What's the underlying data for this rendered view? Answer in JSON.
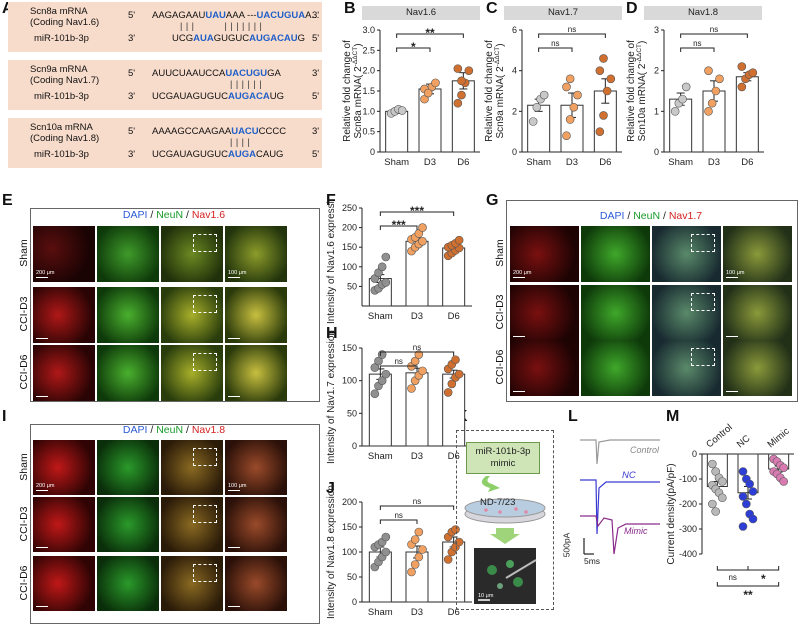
{
  "panel_labels": {
    "A": "A",
    "B": "B",
    "C": "C",
    "D": "D",
    "E": "E",
    "F": "F",
    "G": "G",
    "H": "H",
    "I": "I",
    "J": "J",
    "K": "K",
    "L": "L",
    "M": "M"
  },
  "panelA": {
    "rows": [
      {
        "mrna_line1": "Scn8a mRNA",
        "mrna_line2": "(Coding Nav1.6)",
        "prime5": "5'",
        "prime3": "3'",
        "top_plain": "AAGAGAAU",
        "top_hl1": "UAU",
        "top_mid": "AAA ---",
        "top_hl2": "UACUGUA",
        "top_end": "A...",
        "bars": "| | |          | | | | | | |",
        "mir": "miR-101b-3p",
        "mir_p3": "3'",
        "mir_p5": "5'",
        "bot_plain": "UCG",
        "bot_hl1": "AUA",
        "bot_mid": "GUGUC",
        "bot_hl2": "AUGACAU",
        "bot_end": "G"
      },
      {
        "mrna_line1": "Scn9a mRNA",
        "mrna_line2": "(Coding Nav1.7)",
        "prime5": "5'",
        "prime3": "3'",
        "top_plain": "AUUCUAAUCCA",
        "top_hl1": "",
        "top_mid": "",
        "top_hl2": "UACUGU",
        "top_end": "GA",
        "bars": "| | | | | |",
        "mir": "miR-101b-3p",
        "mir_p3": "3'",
        "mir_p5": "5'",
        "bot_plain": "UCGAUAGUGUC",
        "bot_hl1": "",
        "bot_mid": "",
        "bot_hl2": "AUGACA",
        "bot_end": "UG"
      },
      {
        "mrna_line1": "Scn10a mRNA",
        "mrna_line2": "(Coding Nav1.8)",
        "prime5": "5'",
        "prime3": "3'",
        "top_plain": "AAAAGCCAAGAA",
        "top_hl1": "",
        "top_mid": "",
        "top_hl2": "UACU",
        "top_end": "CCCC",
        "bars": "| | | |",
        "mir": "miR-101b-3p",
        "mir_p3": "3'",
        "mir_p5": "5'",
        "bot_plain": "UCGAUAGUGUC",
        "bot_hl1": "",
        "bot_mid": "",
        "bot_hl2": "AUGA",
        "bot_end": "CAUG"
      }
    ]
  },
  "stain_titles": {
    "E": {
      "dapi": "DAPI",
      "sep1": " / ",
      "neun": "NeuN",
      "sep2": " / ",
      "nav": "Nav1.6"
    },
    "G": {
      "dapi": "DAPI",
      "sep1": " / ",
      "neun": "NeuN",
      "sep2": " / ",
      "nav": "Nav1.7"
    },
    "I": {
      "dapi": "DAPI",
      "sep1": " / ",
      "neun": "NeuN",
      "sep2": " / ",
      "nav": "Nav1.8"
    }
  },
  "row_labels": {
    "E": [
      "Sham",
      "CCI-D3",
      "CCI-D6"
    ],
    "G": [
      "Sham",
      "CCI-D3",
      "CCI-D6"
    ],
    "I": [
      "Sham",
      "CCI-D3",
      "CCI-D6"
    ]
  },
  "scale_labels": {
    "s200": "200 μm",
    "s100": "100 μm",
    "s10": "10 μm"
  },
  "panelK": {
    "box_line1": "miR-101b-3p",
    "box_line2": "mimic",
    "cell_label": "ND-7/23"
  },
  "panelL": {
    "control": "Control",
    "nc": "NC",
    "mimic": "Mimic",
    "scale_y": "500pA",
    "scale_x": "5ms"
  },
  "colors": {
    "dapi": "#2a5bd7",
    "neun": "#1a9a2a",
    "nav": "#d42020",
    "hl": "#1f5fc9",
    "bar_border": "#333",
    "orange": "#e07b39",
    "grey": "#9a9a9a",
    "blue": "#2d3ed6",
    "pink": "#d77bb0"
  },
  "chart_data": [
    {
      "id": "B",
      "type": "bar",
      "title": "Nav1.6",
      "ylabel": "Relative fold change of Scn8a mRNA( 2^-ΔΔCT)",
      "ylabel_line1": "Relative fold change of",
      "ylabel_line2": "Scn8a mRNA( 2",
      "ylabel_sup": "-ΔΔCT",
      "ylabel_end": ")",
      "categories": [
        "Sham",
        "D3",
        "D6"
      ],
      "means": [
        1.0,
        1.55,
        1.75
      ],
      "sems": [
        0.05,
        0.12,
        0.2
      ],
      "points": [
        [
          0.95,
          1.0,
          1.05,
          1.02
        ],
        [
          1.3,
          1.5,
          1.6,
          1.7,
          1.55,
          1.45
        ],
        [
          1.2,
          1.4,
          1.7,
          2.0,
          2.05,
          1.75
        ]
      ],
      "ylim": [
        0,
        3
      ],
      "yticks": [
        "0",
        "0.5",
        "1.0",
        "1.5",
        "2.0",
        "2.5",
        "3.0"
      ],
      "ytick_vals": [
        0,
        0.5,
        1.0,
        1.5,
        2.0,
        2.5,
        3.0
      ],
      "sig": [
        {
          "from": 0,
          "to": 1,
          "label": "*"
        },
        {
          "from": 0,
          "to": 2,
          "label": "**"
        }
      ],
      "point_colors": [
        "#c8c8c8",
        "#f0a060",
        "#d07030"
      ]
    },
    {
      "id": "C",
      "type": "bar",
      "title": "Nav1.7",
      "ylabel_line1": "Relative fold change of",
      "ylabel_line2": "Scn9a mRNA( 2",
      "ylabel_sup": "-ΔΔCT",
      "ylabel_end": ")",
      "categories": [
        "Sham",
        "D3",
        "D6"
      ],
      "means": [
        2.3,
        2.3,
        3.0
      ],
      "sems": [
        0.3,
        0.6,
        0.6
      ],
      "points": [
        [
          1.5,
          2.2,
          2.6,
          2.8
        ],
        [
          0.8,
          1.6,
          2.2,
          2.8,
          3.2,
          3.6
        ],
        [
          1.0,
          1.8,
          3.0,
          3.6,
          4.0,
          4.6
        ]
      ],
      "ylim": [
        0,
        6
      ],
      "yticks": [
        "0",
        "2",
        "4",
        "6"
      ],
      "ytick_vals": [
        0,
        2,
        4,
        6
      ],
      "sig": [
        {
          "from": 0,
          "to": 1,
          "label": "ns"
        },
        {
          "from": 0,
          "to": 2,
          "label": "ns"
        }
      ],
      "point_colors": [
        "#c8c8c8",
        "#f0a060",
        "#d07030"
      ]
    },
    {
      "id": "D",
      "type": "bar",
      "title": "Nav1.8",
      "ylabel_line1": "Relative fold change of",
      "ylabel_line2": "Scn10a mRNA( 2",
      "ylabel_sup": "-ΔΔCT",
      "ylabel_end": ")",
      "categories": [
        "Sham",
        "D3",
        "D6"
      ],
      "means": [
        1.3,
        1.5,
        1.85
      ],
      "sems": [
        0.15,
        0.25,
        0.1
      ],
      "points": [
        [
          1.0,
          1.2,
          1.3,
          1.6
        ],
        [
          1.0,
          1.2,
          1.5,
          1.8,
          2.0
        ],
        [
          1.6,
          1.8,
          1.9,
          1.95,
          2.1
        ]
      ],
      "ylim": [
        0,
        3
      ],
      "yticks": [
        "0",
        "1",
        "2",
        "3"
      ],
      "ytick_vals": [
        0,
        1,
        2,
        3
      ],
      "sig": [
        {
          "from": 0,
          "to": 1,
          "label": "ns"
        },
        {
          "from": 0,
          "to": 2,
          "label": "ns"
        }
      ],
      "point_colors": [
        "#c8c8c8",
        "#f0a060",
        "#d07030"
      ]
    },
    {
      "id": "F",
      "type": "bar",
      "ylabel": "Intensity of Nav1.6 expression",
      "categories": [
        "Sham",
        "D3",
        "D6"
      ],
      "means": [
        70,
        165,
        148
      ],
      "sems": [
        10,
        8,
        6
      ],
      "points": [
        [
          40,
          45,
          55,
          60,
          70,
          85,
          100,
          125
        ],
        [
          140,
          150,
          158,
          165,
          170,
          175,
          185,
          200
        ],
        [
          128,
          135,
          142,
          148,
          150,
          155,
          160,
          168
        ]
      ],
      "ylim": [
        0,
        250
      ],
      "yticks": [
        "50",
        "100",
        "150",
        "200",
        "250"
      ],
      "ytick_vals": [
        50,
        100,
        150,
        200,
        250
      ],
      "sig": [
        {
          "from": 0,
          "to": 1,
          "label": "***"
        },
        {
          "from": 0,
          "to": 2,
          "label": "***"
        }
      ],
      "point_colors": [
        "#909090",
        "#f0a060",
        "#d07030"
      ]
    },
    {
      "id": "H",
      "type": "bar",
      "ylabel": "Intensity of Nav1.7 expression",
      "categories": [
        "Sham",
        "D3",
        "D6"
      ],
      "means": [
        110,
        112,
        110
      ],
      "sems": [
        8,
        7,
        6
      ],
      "points": [
        [
          80,
          92,
          100,
          110,
          120,
          130,
          140
        ],
        [
          88,
          100,
          108,
          115,
          122,
          130,
          140
        ],
        [
          82,
          95,
          105,
          110,
          118,
          125,
          132
        ]
      ],
      "ylim": [
        0,
        150
      ],
      "yticks": [
        "0",
        "50",
        "100",
        "150"
      ],
      "ytick_vals": [
        0,
        50,
        100,
        150
      ],
      "sig": [
        {
          "from": 0,
          "to": 1,
          "label": "ns"
        },
        {
          "from": 0,
          "to": 2,
          "label": "ns"
        }
      ],
      "point_colors": [
        "#909090",
        "#f0a060",
        "#d07030"
      ]
    },
    {
      "id": "J",
      "type": "bar",
      "ylabel": "Intensity of Nav1.8 expression",
      "categories": [
        "Sham",
        "D3",
        "D6"
      ],
      "means": [
        100,
        100,
        120
      ],
      "sems": [
        10,
        12,
        10
      ],
      "points": [
        [
          70,
          80,
          90,
          100,
          110,
          115,
          120,
          130
        ],
        [
          60,
          75,
          90,
          105,
          115,
          125,
          140
        ],
        [
          85,
          100,
          110,
          120,
          130,
          140,
          145
        ]
      ],
      "ylim": [
        0,
        200
      ],
      "yticks": [
        "0",
        "50",
        "100",
        "150",
        "200"
      ],
      "ytick_vals": [
        0,
        50,
        100,
        150,
        200
      ],
      "sig": [
        {
          "from": 0,
          "to": 1,
          "label": "ns"
        },
        {
          "from": 0,
          "to": 2,
          "label": "ns"
        }
      ],
      "point_colors": [
        "#909090",
        "#f0a060",
        "#d07030"
      ]
    },
    {
      "id": "M",
      "type": "bar",
      "ylabel": "Current density(pA/pF)",
      "categories": [
        "Control",
        "NC",
        "Mimic"
      ],
      "means": [
        -130,
        -155,
        -60
      ],
      "sems": [
        20,
        25,
        12
      ],
      "points": [
        [
          -40,
          -70,
          -95,
          -110,
          -125,
          -140,
          -155,
          -175,
          -200,
          -230
        ],
        [
          -70,
          -100,
          -120,
          -150,
          -170,
          -200,
          -240,
          -260,
          -290
        ],
        [
          -20,
          -30,
          -45,
          -55,
          -70,
          -80,
          -95,
          -110
        ]
      ],
      "ylim": [
        -400,
        0
      ],
      "yticks": [
        "0",
        "-100",
        "-200",
        "-300",
        "-400"
      ],
      "ytick_vals": [
        0,
        -100,
        -200,
        -300,
        -400
      ],
      "sig": [
        {
          "from": 0,
          "to": 1,
          "label": "ns"
        },
        {
          "from": 1,
          "to": 2,
          "label": "*"
        },
        {
          "from": 0,
          "to": 2,
          "label": "**"
        }
      ],
      "point_colors": [
        "#b8b8b8",
        "#2d3ed6",
        "#d77bb0"
      ]
    }
  ]
}
